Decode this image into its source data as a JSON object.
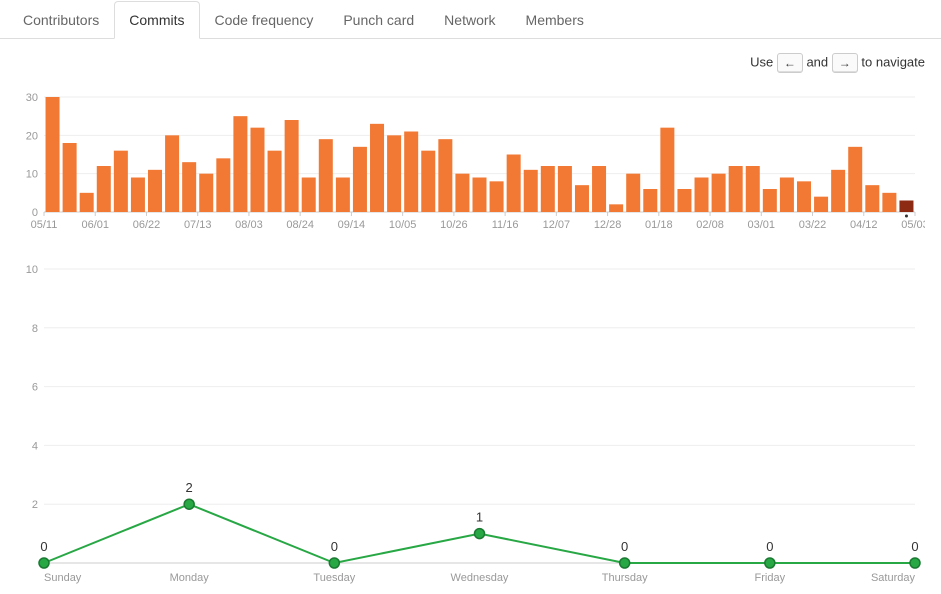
{
  "tabs": [
    {
      "label": "Contributors",
      "active": false
    },
    {
      "label": "Commits",
      "active": true
    },
    {
      "label": "Code frequency",
      "active": false
    },
    {
      "label": "Punch card",
      "active": false
    },
    {
      "label": "Network",
      "active": false
    },
    {
      "label": "Members",
      "active": false
    }
  ],
  "nav_hint": {
    "use": "Use",
    "and": "and",
    "to_navigate": "to navigate",
    "left": "←",
    "right": "→"
  },
  "bar_chart": {
    "type": "bar",
    "y_ticks": [
      0,
      10,
      20,
      30
    ],
    "y_max": 30,
    "bar_color": "#f17934",
    "highlight_color": "#8d2a13",
    "axis_color": "#999999",
    "grid_color": "#eeeeee",
    "x_labels": [
      "05/11",
      "06/01",
      "06/22",
      "07/13",
      "08/03",
      "08/24",
      "09/14",
      "10/05",
      "10/26",
      "11/16",
      "12/07",
      "12/28",
      "01/18",
      "02/08",
      "03/01",
      "03/22",
      "04/12",
      "05/03"
    ],
    "values": [
      30,
      18,
      5,
      12,
      16,
      9,
      11,
      20,
      13,
      10,
      14,
      25,
      22,
      16,
      24,
      9,
      19,
      9,
      17,
      23,
      20,
      21,
      16,
      19,
      10,
      9,
      8,
      15,
      11,
      12,
      12,
      7,
      12,
      2,
      10,
      6,
      22,
      6,
      9,
      10,
      12,
      12,
      6,
      9,
      8,
      4,
      11,
      17,
      7,
      5,
      3
    ],
    "highlight_index": 50
  },
  "line_chart": {
    "type": "line",
    "y_ticks": [
      2,
      4,
      6,
      8,
      10
    ],
    "y_max": 10,
    "line_color": "#28a745",
    "marker_fill": "#28a745",
    "marker_stroke": "#1a7a32",
    "axis_color": "#999999",
    "grid_color": "#eeeeee",
    "days": [
      "Sunday",
      "Monday",
      "Tuesday",
      "Wednesday",
      "Thursday",
      "Friday",
      "Saturday"
    ],
    "values": [
      0,
      2,
      0,
      1,
      0,
      0,
      0
    ]
  }
}
